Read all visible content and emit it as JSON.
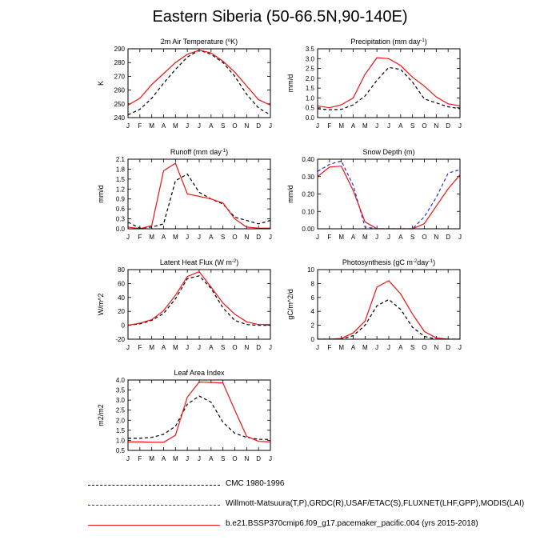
{
  "title": "Eastern Siberia (50-66.5N,90-140E)",
  "colors": {
    "obs_black": "#000000",
    "obs_blue": "#2b2bdc",
    "model": "#ee1111"
  },
  "legend": [
    {
      "label": "CMC 1980-1996",
      "color": "#000000",
      "style": "dashed"
    },
    {
      "label": "Willmott-Matsuura(T,P),GRDC(R),USAF/ETAC(S),FLUXNET(LHF,GPP),MODIS(LAI)",
      "color": "#2b2bdc",
      "style": "dashed"
    },
    {
      "label": "b.e21.BSSP370cmip6.f09_g17.pacemaker_pacific.004 (yrs 2015-2018)",
      "color": "#ee1111",
      "style": "solid"
    }
  ],
  "chart_data": [
    {
      "type": "line",
      "id": "air-temp",
      "title": "2m Air Temperature",
      "title_pre": "2m Air Temperature (",
      "title_sup": "o",
      "title_post": "K)",
      "ylabel": "K",
      "categories": [
        "J",
        "F",
        "M",
        "A",
        "M",
        "J",
        "J",
        "A",
        "S",
        "O",
        "N",
        "D",
        "J"
      ],
      "ylim": [
        240,
        290
      ],
      "yticks": [
        240,
        250,
        260,
        270,
        280,
        290
      ],
      "ytick_labels": [
        "240",
        "250",
        "260",
        "270",
        "280",
        "290"
      ],
      "series": [
        {
          "name": "obs",
          "color": "#000000",
          "dash": true,
          "values": [
            242,
            246,
            254,
            265,
            275,
            284,
            289,
            286,
            280,
            270,
            257,
            247,
            242
          ]
        },
        {
          "name": "model",
          "color": "#ee1111",
          "dash": false,
          "values": [
            249,
            254,
            264,
            272,
            280,
            286,
            289,
            287,
            281,
            273,
            263,
            253,
            249
          ]
        }
      ]
    },
    {
      "type": "line",
      "id": "precipitation",
      "title": "Precipitation",
      "title_pre": "Precipitation (mm day",
      "title_sup": "-1",
      "title_post": ")",
      "ylabel": "mm/d",
      "categories": [
        "J",
        "F",
        "M",
        "A",
        "M",
        "J",
        "J",
        "A",
        "S",
        "O",
        "N",
        "D",
        "J"
      ],
      "ylim": [
        0,
        3.5
      ],
      "yticks": [
        0,
        0.5,
        1,
        1.5,
        2,
        2.5,
        3,
        3.5
      ],
      "ytick_labels": [
        "0.0",
        "0.5",
        "1.0",
        "1.5",
        "2.0",
        "2.5",
        "3.0",
        "3.5"
      ],
      "series": [
        {
          "name": "obs",
          "color": "#000000",
          "dash": true,
          "values": [
            0.45,
            0.4,
            0.42,
            0.65,
            1.1,
            1.9,
            2.55,
            2.45,
            1.8,
            0.95,
            0.75,
            0.55,
            0.45
          ]
        },
        {
          "name": "model",
          "color": "#ee1111",
          "dash": false,
          "values": [
            0.6,
            0.5,
            0.65,
            1.0,
            2.2,
            3.05,
            3.0,
            2.65,
            2.05,
            1.6,
            1.05,
            0.7,
            0.6
          ]
        }
      ]
    },
    {
      "type": "line",
      "id": "runoff",
      "title": "Runoff",
      "title_pre": "Runoff (mm day",
      "title_sup": "-1",
      "title_post": ")",
      "ylabel": "mm/d",
      "categories": [
        "J",
        "F",
        "M",
        "A",
        "M",
        "J",
        "J",
        "A",
        "S",
        "O",
        "N",
        "D",
        "J"
      ],
      "ylim": [
        0,
        2.1
      ],
      "yticks": [
        0,
        0.3,
        0.6,
        0.9,
        1.2,
        1.5,
        1.8,
        2.1
      ],
      "ytick_labels": [
        "0.0",
        "0.3",
        "0.6",
        "0.9",
        "1.2",
        "1.5",
        "1.8",
        "2.1"
      ],
      "series": [
        {
          "name": "obs",
          "color": "#000000",
          "dash": true,
          "values": [
            0.2,
            0.02,
            0.05,
            0.15,
            1.45,
            1.65,
            1.1,
            0.9,
            0.75,
            0.35,
            0.25,
            0.15,
            0.25
          ]
        },
        {
          "name": "model",
          "color": "#ee1111",
          "dash": false,
          "values": [
            0.05,
            0.0,
            0.1,
            1.75,
            1.98,
            1.05,
            0.98,
            0.9,
            0.78,
            0.3,
            0.05,
            0.02,
            0.02
          ]
        }
      ]
    },
    {
      "type": "line",
      "id": "snow-depth",
      "title": "Snow Depth",
      "title_pre": "Snow Depth (m)",
      "title_sup": "",
      "title_post": "",
      "ylabel": "mm/d",
      "categories": [
        "J",
        "F",
        "M",
        "A",
        "M",
        "J",
        "J",
        "A",
        "S",
        "O",
        "N",
        "D",
        "J"
      ],
      "ylim": [
        0,
        0.4
      ],
      "yticks": [
        0,
        0.1,
        0.2,
        0.3,
        0.4
      ],
      "ytick_labels": [
        "0.00",
        "0.10",
        "0.20",
        "0.30",
        "0.40"
      ],
      "series": [
        {
          "name": "obs",
          "color": "#2b2bdc",
          "dash": true,
          "values": [
            0.33,
            0.37,
            0.39,
            0.25,
            0.01,
            0.0,
            0.0,
            0.0,
            0.0,
            0.07,
            0.18,
            0.32,
            0.34
          ]
        },
        {
          "name": "model",
          "color": "#ee1111",
          "dash": false,
          "values": [
            0.3,
            0.355,
            0.36,
            0.22,
            0.04,
            0.0,
            0.0,
            0.0,
            0.0,
            0.03,
            0.13,
            0.23,
            0.31
          ]
        }
      ]
    },
    {
      "type": "line",
      "id": "latent-heat",
      "title": "Latent Heat Flux",
      "title_pre": "Latent Heat Flux (W m",
      "title_sup": "-2",
      "title_post": ")",
      "ylabel": "W/m^2",
      "categories": [
        "J",
        "F",
        "M",
        "A",
        "M",
        "J",
        "J",
        "A",
        "S",
        "O",
        "N",
        "D",
        "J"
      ],
      "ylim": [
        -20,
        80
      ],
      "yticks": [
        -20,
        0,
        20,
        40,
        60,
        80
      ],
      "ytick_labels": [
        "-20",
        "0",
        "20",
        "40",
        "60",
        "80"
      ],
      "series": [
        {
          "name": "obs",
          "color": "#000000",
          "dash": true,
          "values": [
            0,
            2,
            7,
            17,
            38,
            67,
            71,
            53,
            25,
            7,
            1,
            0,
            0
          ]
        },
        {
          "name": "model",
          "color": "#ee1111",
          "dash": false,
          "values": [
            0,
            3,
            8,
            21,
            43,
            70,
            77,
            55,
            32,
            16,
            5,
            1,
            1
          ]
        }
      ]
    },
    {
      "type": "line",
      "id": "photosynthesis",
      "title": "Photosynthesis",
      "title_pre": "Photosynthesis (gC m",
      "title_sup": "-2",
      "title_post": "day",
      "title_sup2": "-1",
      "title_post2": ")",
      "ylabel": "gC/m^2/d",
      "categories": [
        "J",
        "F",
        "M",
        "A",
        "M",
        "J",
        "J",
        "A",
        "S",
        "O",
        "N",
        "D",
        "J"
      ],
      "ylim": [
        0,
        10
      ],
      "yticks": [
        0,
        2,
        4,
        6,
        8,
        10
      ],
      "ytick_labels": [
        "0",
        "2",
        "4",
        "6",
        "8",
        "10"
      ],
      "series": [
        {
          "name": "obs",
          "color": "#000000",
          "dash": true,
          "values": [
            0,
            0,
            0,
            0.5,
            2.0,
            4.8,
            5.7,
            4.3,
            1.7,
            0.4,
            0,
            0,
            0
          ]
        },
        {
          "name": "model",
          "color": "#ee1111",
          "dash": false,
          "values": [
            0,
            0,
            0.1,
            0.9,
            2.6,
            7.5,
            8.4,
            6.5,
            3.6,
            1.1,
            0.2,
            0,
            0
          ]
        }
      ]
    },
    {
      "type": "line",
      "id": "lai",
      "title": "Leaf Area Index",
      "title_pre": "Leaf Area Index",
      "title_sup": "",
      "title_post": "",
      "ylabel": "m2/m2",
      "categories": [
        "J",
        "F",
        "M",
        "A",
        "M",
        "J",
        "J",
        "A",
        "S",
        "O",
        "N",
        "D",
        "J"
      ],
      "ylim": [
        0.5,
        4.0
      ],
      "yticks": [
        0.5,
        1.0,
        1.5,
        2.0,
        2.5,
        3.0,
        3.5,
        4.0
      ],
      "ytick_labels": [
        "0.5",
        "1.0",
        "1.5",
        "2.0",
        "2.5",
        "3.0",
        "3.5",
        "4.0"
      ],
      "series": [
        {
          "name": "obs",
          "color": "#000000",
          "dash": true,
          "values": [
            1.1,
            1.1,
            1.15,
            1.3,
            1.7,
            2.8,
            3.2,
            2.9,
            1.9,
            1.35,
            1.15,
            1.05,
            1.05
          ]
        },
        {
          "name": "model",
          "color": "#ee1111",
          "dash": false,
          "values": [
            0.92,
            0.92,
            0.9,
            0.9,
            1.25,
            3.15,
            3.9,
            3.88,
            3.85,
            2.5,
            1.2,
            0.95,
            0.92
          ]
        }
      ]
    }
  ]
}
